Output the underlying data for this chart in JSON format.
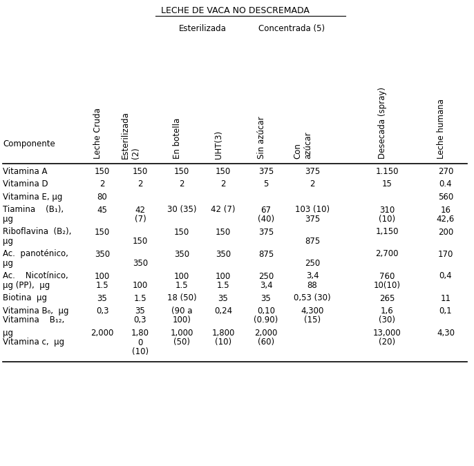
{
  "title": "LECHE DE VACA NO DESCREMADA",
  "component_label": "Componente",
  "subgroup1_label": "Esterilizada",
  "subgroup2_label": "Concentrada (5)",
  "col_headers": [
    "Leche Cruda",
    "Esterilizada\n(2)",
    "En botella",
    "UHT(3)",
    "Sin azúcar",
    "Con\nazúcar",
    "Desecada (spray)",
    "Leche humana"
  ],
  "rows": [
    {
      "label": [
        [
          "Vitamina A",
          ""
        ]
      ],
      "vals": [
        [
          "150",
          "150",
          "150",
          "150",
          "375",
          "375",
          "1.150",
          "270"
        ]
      ]
    },
    {
      "label": [
        [
          "Vitamina D",
          ""
        ]
      ],
      "vals": [
        [
          "2",
          "2",
          "2",
          "2",
          "5",
          "2",
          "15",
          "0.4"
        ]
      ]
    },
    {
      "label": [
        [
          "Vitamina E, μg",
          ""
        ]
      ],
      "vals": [
        [
          "80",
          "",
          "",
          "",
          "",
          "",
          "",
          "560"
        ]
      ]
    },
    {
      "label": [
        [
          "Tiamina    (B₁),",
          "μg"
        ]
      ],
      "vals": [
        [
          "45",
          "42",
          "30 (35)",
          "42 (7)",
          "67",
          "103 (10)",
          "310",
          "16"
        ],
        [
          "",
          "(7)",
          "",
          "",
          "(40)",
          "375",
          "(10)",
          "42,6"
        ]
      ]
    },
    {
      "label": [
        [
          "Riboflavina  (B₂),",
          "μg"
        ]
      ],
      "vals": [
        [
          "150",
          "",
          "150",
          "150",
          "375",
          "",
          "1,150",
          "200"
        ],
        [
          "",
          "150",
          "",
          "",
          "",
          "875",
          "",
          ""
        ]
      ]
    },
    {
      "label": [
        [
          "Ac.  panoténico,",
          "μg"
        ]
      ],
      "vals": [
        [
          "350",
          "",
          "350",
          "350",
          "875",
          "",
          "2,700",
          "170"
        ],
        [
          "",
          "350",
          "",
          "",
          "",
          "250",
          "",
          ""
        ]
      ]
    },
    {
      "label": [
        [
          "Ac.    Nicotínico,",
          "μg (PP),  μg"
        ]
      ],
      "vals": [
        [
          "100",
          "",
          "100",
          "100",
          "250",
          "3,4",
          "760",
          "0,4"
        ],
        [
          "1.5",
          "100",
          "1.5",
          "1.5",
          "3,4",
          "88",
          "10(10)",
          ""
        ]
      ]
    },
    {
      "label": [
        [
          "Biotina  μg",
          ""
        ]
      ],
      "vals": [
        [
          "35",
          "1.5",
          "18 (50)",
          "35",
          "35",
          "0,53 (30)",
          "265",
          "11"
        ]
      ]
    },
    {
      "label": [
        [
          "Vitamina B₆,  μg",
          "Vitamina    B₁₂,"
        ]
      ],
      "vals": [
        [
          "0,3",
          "35",
          "(90 a",
          "0,24",
          "0,10",
          "4,300",
          "1,6",
          "0,1"
        ],
        [
          "",
          "0,3",
          "100)",
          "",
          "(0.90)",
          "(15)",
          "(30)",
          ""
        ]
      ]
    },
    {
      "label": [
        [
          "μg",
          "Vitamina c,  μg"
        ]
      ],
      "vals": [
        [
          "2,000",
          "1,80",
          "1,000",
          "1,800",
          "2,000",
          "",
          "13,000",
          "4,30"
        ],
        [
          "",
          "0",
          "(50)",
          "(10)",
          "(60)",
          "",
          "(20)",
          ""
        ],
        [
          "",
          "(10)",
          "",
          "",
          "",
          "",
          "",
          ""
        ]
      ]
    }
  ],
  "bg_color": "#ffffff",
  "text_color": "#000000"
}
